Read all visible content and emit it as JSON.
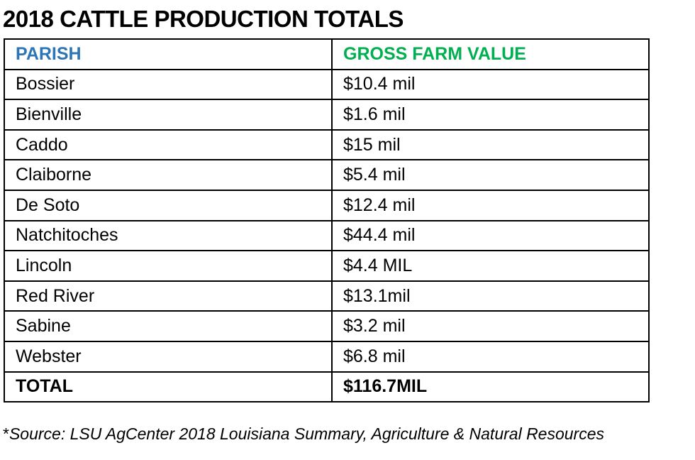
{
  "header": {
    "title": "2018 CATTLE PRODUCTION TOTALS"
  },
  "table": {
    "columns": [
      "PARISH",
      "GROSS FARM VALUE"
    ],
    "rows": [
      [
        "Bossier",
        "$10.4 mil"
      ],
      [
        "Bienville",
        "$1.6 mil"
      ],
      [
        "Caddo",
        "$15 mil"
      ],
      [
        "Claiborne",
        "$5.4 mil"
      ],
      [
        "De Soto",
        "$12.4 mil"
      ],
      [
        "Natchitoches",
        "$44.4 mil"
      ],
      [
        "Lincoln",
        "$4.4 MIL"
      ],
      [
        "Red River",
        "$13.1mil"
      ],
      [
        "Sabine",
        "$3.2 mil"
      ],
      [
        "Webster",
        "$6.8 mil"
      ]
    ],
    "total": [
      "TOTAL",
      "$116.7MIL"
    ]
  },
  "note": {
    "marker": "*",
    "text": "Source: LSU AgCenter 2018 Louisiana Summary, Agriculture & Natural Resources"
  }
}
